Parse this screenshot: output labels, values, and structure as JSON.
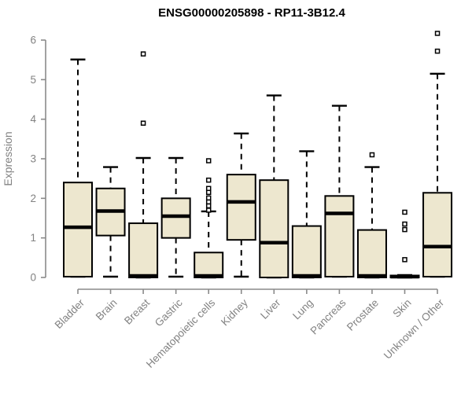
{
  "window": {
    "background": "#ffffff"
  },
  "colors": {
    "box_fill": "#EDE7CF",
    "axis_gray": "#8A8A8A",
    "label_gray": "#828282",
    "element_black": "#000000",
    "outlier_fill": "#FFFFFF"
  },
  "chart_data": {
    "type": "boxplot",
    "title": "ENSG00000205898 - RP11-3B12.4",
    "xlabel": "",
    "ylabel": "Expression",
    "ylim": [
      0,
      6
    ],
    "yticks": [
      0,
      1,
      2,
      3,
      4,
      5,
      6
    ],
    "grid": false,
    "legend": "none",
    "x_label_rotation_deg": 45,
    "categories": [
      "Bladder",
      "Brain",
      "Breast",
      "Gastric",
      "Hematopoietic cells",
      "Kidney",
      "Liver",
      "Lung",
      "Pancreas",
      "Prostate",
      "Skin",
      "Unknown / Other"
    ],
    "series": [
      {
        "name": "Bladder",
        "low": 0.02,
        "q1": 0.02,
        "median": 1.27,
        "q3": 2.4,
        "high": 5.51,
        "outliers": []
      },
      {
        "name": "Brain",
        "low": 0.02,
        "q1": 1.06,
        "median": 1.68,
        "q3": 2.25,
        "high": 2.79,
        "outliers": []
      },
      {
        "name": "Breast",
        "low": 0.0,
        "q1": 0.0,
        "median": 0.04,
        "q3": 1.37,
        "high": 3.02,
        "outliers": [
          3.9,
          5.65
        ]
      },
      {
        "name": "Gastric",
        "low": 0.02,
        "q1": 1.0,
        "median": 1.55,
        "q3": 2.0,
        "high": 3.02,
        "outliers": []
      },
      {
        "name": "Hematopoietic cells",
        "low": 0.0,
        "q1": 0.0,
        "median": 0.04,
        "q3": 0.63,
        "high": 1.67,
        "outliers": [
          1.7,
          1.81,
          1.91,
          2.01,
          2.15,
          2.25,
          2.46,
          2.95
        ]
      },
      {
        "name": "Kidney",
        "low": 0.02,
        "q1": 0.95,
        "median": 1.91,
        "q3": 2.6,
        "high": 3.64,
        "outliers": []
      },
      {
        "name": "Liver",
        "low": 0.0,
        "q1": 0.0,
        "median": 0.88,
        "q3": 2.46,
        "high": 4.6,
        "outliers": []
      },
      {
        "name": "Lung",
        "low": 0.0,
        "q1": 0.0,
        "median": 0.04,
        "q3": 1.3,
        "high": 3.19,
        "outliers": []
      },
      {
        "name": "Pancreas",
        "low": 0.02,
        "q1": 0.02,
        "median": 1.62,
        "q3": 2.06,
        "high": 4.34,
        "outliers": []
      },
      {
        "name": "Prostate",
        "low": 0.0,
        "q1": 0.0,
        "median": 0.04,
        "q3": 1.2,
        "high": 2.79,
        "outliers": [
          3.1
        ]
      },
      {
        "name": "Skin",
        "low": 0.0,
        "q1": 0.0,
        "median": 0.02,
        "q3": 0.05,
        "high": 0.06,
        "outliers": [
          0.45,
          1.21,
          1.35,
          1.65
        ]
      },
      {
        "name": "Unknown / Other",
        "low": 0.02,
        "q1": 0.02,
        "median": 0.78,
        "q3": 2.14,
        "high": 5.15,
        "outliers": [
          5.72,
          6.17
        ]
      }
    ]
  }
}
